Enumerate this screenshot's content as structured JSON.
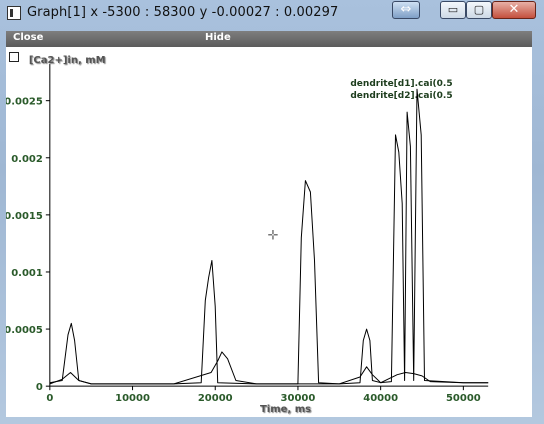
{
  "window": {
    "title": "Graph[1]  x -5300 : 58300  y -0.00027 : 0.00297",
    "swap_glyph": "⇔",
    "minimize_glyph": "▭",
    "maximize_glyph": "▢",
    "close_glyph": "✕"
  },
  "menu": {
    "close_label": "Close",
    "hide_label": "Hide"
  },
  "chart_data": {
    "type": "line",
    "ylabel": "[Ca2+]in, mM",
    "xlabel": "Time, ms",
    "xlim": [
      -5300,
      58300
    ],
    "ylim": [
      -0.00027,
      0.00297
    ],
    "x_ticks": [
      0,
      10000,
      20000,
      30000,
      40000,
      50000
    ],
    "y_ticks": [
      0,
      0.0005,
      0.001,
      0.0015,
      0.002,
      0.0025
    ],
    "x_tick_labels": [
      "0",
      "10000",
      "20000",
      "30000",
      "40000",
      "50000"
    ],
    "y_tick_labels": [
      "0",
      "0.0005",
      "0.001",
      "0.0015",
      "0.002",
      "0.0025"
    ],
    "legend": [
      "dendrite[d1].cai(0.5",
      "dendrite[d2].cai(0.5"
    ],
    "legend_position": "top-right",
    "series": [
      {
        "name": "dendrite[d1].cai(0.5",
        "x": [
          0,
          1500,
          2200,
          2600,
          3000,
          3500,
          5000,
          10000,
          15000,
          18300,
          18800,
          19200,
          19600,
          20000,
          20300,
          25000,
          30000,
          30400,
          30900,
          31500,
          32000,
          32500,
          35000,
          37500,
          37900,
          38300,
          38700,
          39000,
          40000,
          41300,
          41800,
          42200,
          42600,
          42900,
          43200,
          43600,
          44000,
          44400,
          44900,
          45300,
          50000,
          53000
        ],
        "y": [
          3e-05,
          5e-05,
          0.00045,
          0.00055,
          0.0004,
          5e-05,
          2e-05,
          2e-05,
          2e-05,
          3e-05,
          0.00075,
          0.00095,
          0.0011,
          0.0007,
          3e-05,
          2e-05,
          2e-05,
          0.0013,
          0.0018,
          0.0017,
          0.0011,
          3e-05,
          2e-05,
          3e-05,
          0.0004,
          0.0005,
          0.0004,
          5e-05,
          3e-05,
          4e-05,
          0.0022,
          0.00205,
          0.0016,
          5e-05,
          0.0024,
          0.0021,
          5e-05,
          0.0026,
          0.0022,
          5e-05,
          3e-05,
          3e-05
        ]
      },
      {
        "name": "dendrite[d2].cai(0.5",
        "x": [
          0,
          1500,
          2500,
          3500,
          5000,
          15000,
          19500,
          20300,
          20800,
          21500,
          22500,
          25000,
          35000,
          37500,
          38300,
          39000,
          40000,
          42000,
          43000,
          44000,
          45000,
          46000,
          50000,
          53000
        ],
        "y": [
          2e-05,
          6e-05,
          0.00012,
          5e-05,
          2e-05,
          2e-05,
          0.00012,
          0.00022,
          0.0003,
          0.00024,
          5e-05,
          2e-05,
          2e-05,
          8e-05,
          0.00017,
          0.0001,
          3e-05,
          0.0001,
          0.00012,
          0.00011,
          9e-05,
          4e-05,
          3e-05,
          3e-05
        ]
      }
    ]
  },
  "crosshair": {
    "glyph": "✛"
  }
}
